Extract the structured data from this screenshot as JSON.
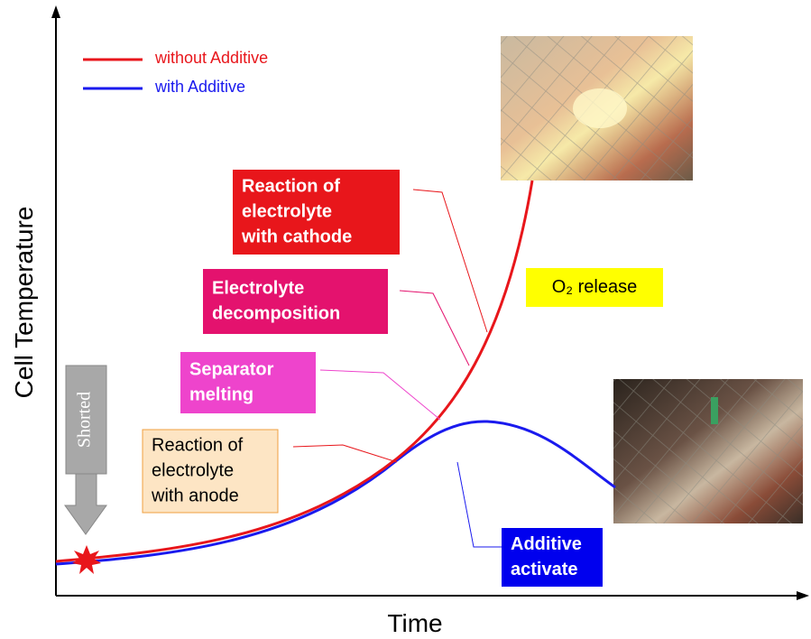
{
  "axes": {
    "y_label": "Cell Temperature",
    "x_label": "Time"
  },
  "legend": {
    "items": [
      {
        "label": "without Additive",
        "color": "#e8161b"
      },
      {
        "label": "with Additive",
        "color": "#1a1aee"
      }
    ]
  },
  "event": {
    "label": "Shorted"
  },
  "boxes": [
    {
      "lines": [
        "Reaction of",
        "electrolyte",
        "with cathode"
      ]
    },
    {
      "lines": [
        "Electrolyte",
        "decomposition"
      ]
    },
    {
      "lines": [
        "Separator",
        "melting"
      ]
    },
    {
      "lines": [
        "Reaction of",
        "electrolyte",
        "with anode"
      ]
    },
    {
      "lines": [
        "O₂ release"
      ]
    },
    {
      "lines": [
        "Additive",
        "activate"
      ]
    }
  ]
}
